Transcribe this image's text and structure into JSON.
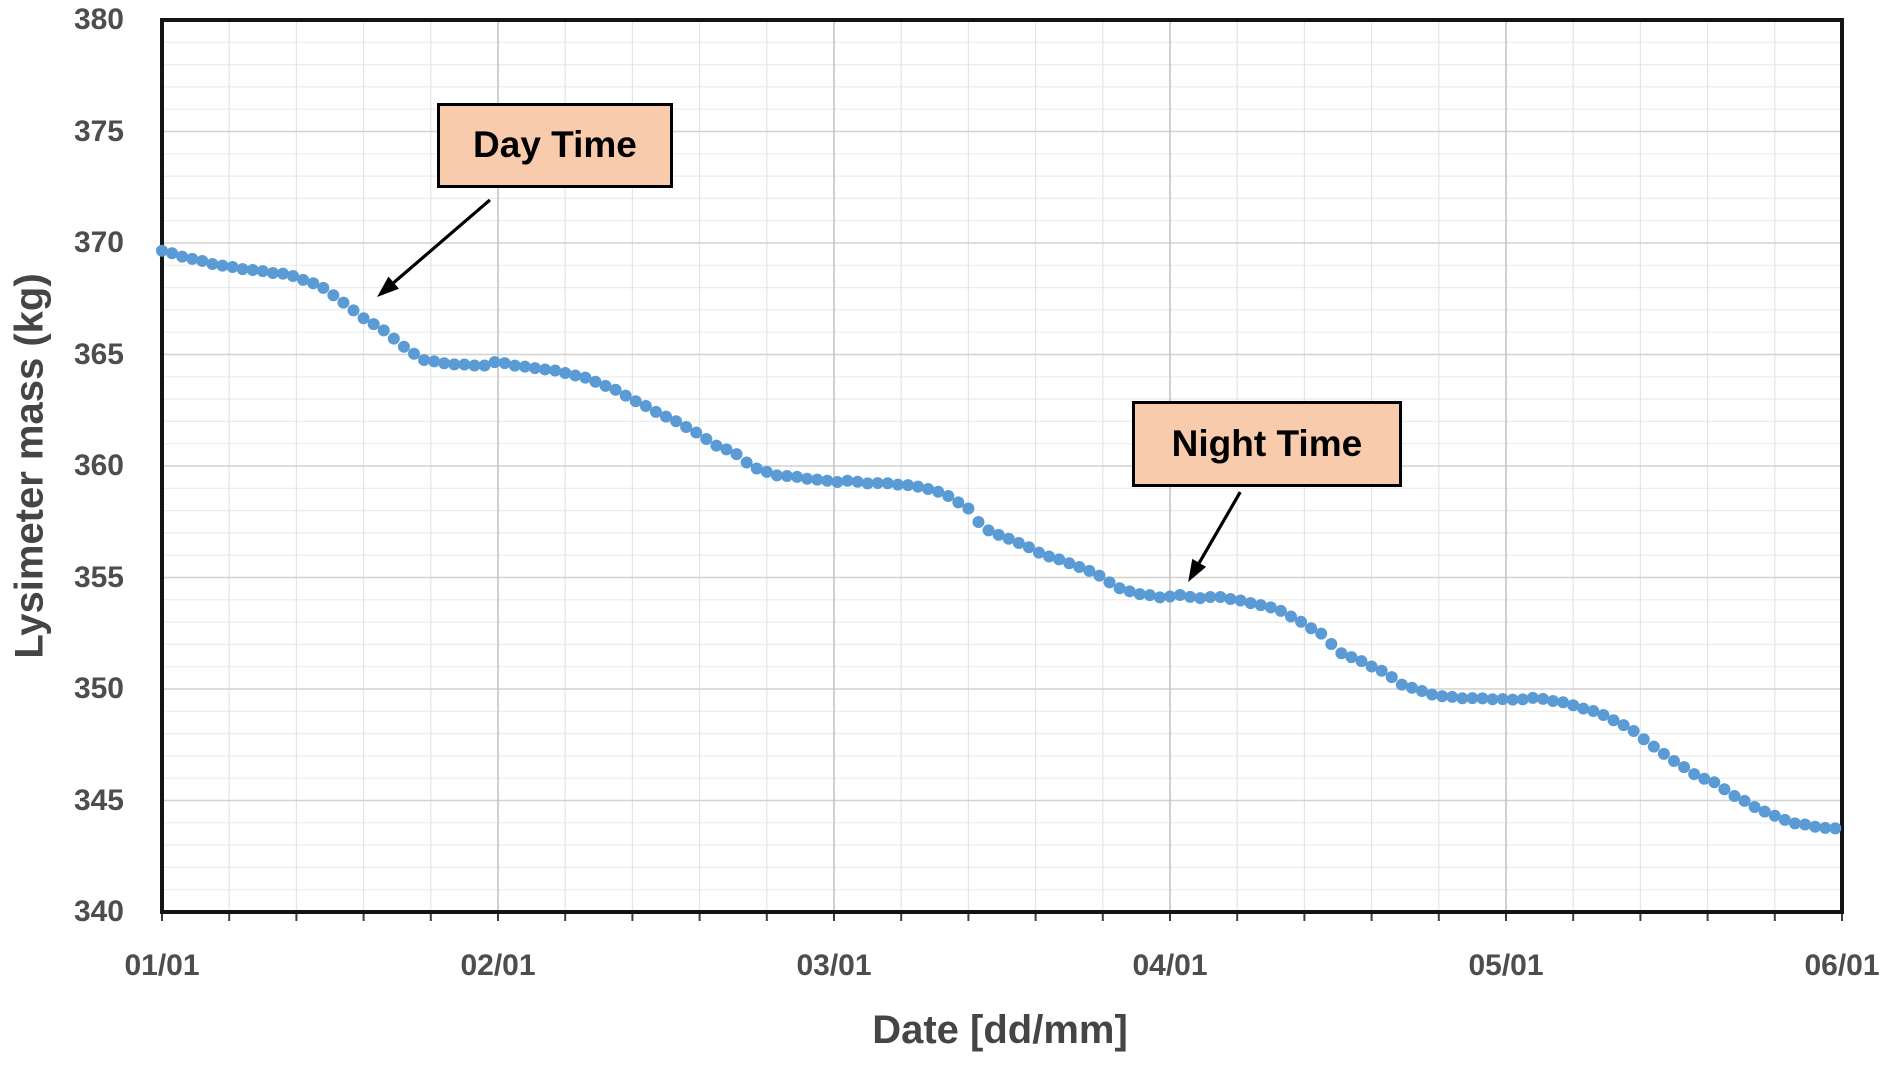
{
  "chart_data": {
    "type": "scatter",
    "title": "",
    "xlabel": "Date [dd/mm]",
    "ylabel": "Lysimeter mass (kg)",
    "xlim_days": [
      0,
      5
    ],
    "ylim": [
      340,
      380
    ],
    "x_tick_days": [
      0,
      1,
      2,
      3,
      4,
      5
    ],
    "x_tick_labels": [
      "01/01",
      "02/01",
      "03/01",
      "04/01",
      "05/01",
      "06/01"
    ],
    "y_ticks": [
      340,
      345,
      350,
      355,
      360,
      365,
      370,
      375,
      380
    ],
    "x_minor_step_days": 0.2,
    "y_minor_step_kg": 1,
    "grid": "major and minor, both axes",
    "legend": "none",
    "style": {
      "marker_color": "#5B9BD5",
      "marker_radius_px": 6,
      "plot_border_color": "#141414",
      "grid_minor_h": "#ececec",
      "grid_major_h": "#d2d2d2",
      "grid_minor_v": "#e4e4e4",
      "grid_major_v": "#c4c4c4",
      "tick_mark_color": "#3d3d3d",
      "label_color": "#4d4d4d",
      "annotation_fill": "#F8CBAD",
      "annotation_border": "#000000",
      "arrow_color": "#000000",
      "background": "#ffffff"
    },
    "series": [
      {
        "name": "Lysimeter mass",
        "sample_step_days": 0.03,
        "noise_kg": 0.035,
        "anchors": {
          "x_days": [
            0,
            0.08,
            0.17,
            0.27,
            0.37,
            0.43,
            0.49,
            0.55,
            0.61,
            0.67,
            0.73,
            0.78,
            0.83,
            0.89,
            0.95,
            1.0,
            1.07,
            1.13,
            1.19,
            1.25,
            1.3,
            1.36,
            1.4,
            1.46,
            1.52,
            1.58,
            1.64,
            1.7,
            1.76,
            1.82,
            1.88,
            1.94,
            2.0,
            2.04,
            2.1,
            2.17,
            2.23,
            2.29,
            2.35,
            2.4,
            2.44,
            2.49,
            2.55,
            2.61,
            2.67,
            2.73,
            2.79,
            2.85,
            2.91,
            2.97,
            3.03,
            3.09,
            3.15,
            3.21,
            3.27,
            3.33,
            3.39,
            3.45,
            3.5,
            3.56,
            3.63,
            3.69,
            3.75,
            3.8,
            3.88,
            3.95,
            4.02,
            4.09,
            4.16,
            4.22,
            4.28,
            4.32,
            4.38,
            4.44,
            4.5,
            4.56,
            4.62,
            4.68,
            4.74,
            4.8,
            4.86,
            4.92,
            4.97,
            5.0
          ],
          "mass_kg": [
            369.65,
            369.3,
            369.0,
            368.8,
            368.6,
            368.3,
            367.9,
            367.2,
            366.55,
            366.0,
            365.2,
            364.75,
            364.6,
            364.55,
            364.5,
            364.7,
            364.45,
            364.35,
            364.2,
            364.0,
            363.75,
            363.35,
            363.0,
            362.5,
            362.05,
            361.6,
            361.0,
            360.65,
            359.95,
            359.6,
            359.5,
            359.4,
            359.3,
            359.35,
            359.25,
            359.2,
            359.1,
            358.95,
            358.6,
            358.1,
            357.3,
            356.9,
            356.55,
            356.1,
            355.8,
            355.5,
            355.1,
            354.5,
            354.25,
            354.1,
            354.2,
            354.1,
            354.15,
            353.95,
            353.75,
            353.5,
            353.0,
            352.5,
            351.7,
            351.3,
            350.8,
            350.2,
            349.9,
            349.7,
            349.6,
            349.55,
            349.5,
            349.6,
            349.45,
            349.2,
            348.9,
            348.6,
            348.1,
            347.4,
            346.8,
            346.2,
            345.8,
            345.2,
            344.7,
            344.3,
            344.0,
            343.85,
            343.75,
            343.7
          ]
        }
      }
    ],
    "annotations": [
      {
        "label": "Day Time",
        "box": {
          "x0_days": 0.818,
          "x1_days": 1.521,
          "top_kg": 376.28,
          "bottom_kg": 372.47
        },
        "arrow": {
          "from": {
            "x_days": 0.976,
            "y_kg": 371.93
          },
          "to": {
            "x_days": 0.64,
            "y_kg": 367.58
          }
        }
      },
      {
        "label": "Night Time",
        "box": {
          "x0_days": 2.887,
          "x1_days": 3.69,
          "top_kg": 362.9,
          "bottom_kg": 359.06
        },
        "arrow": {
          "from": {
            "x_days": 3.209,
            "y_kg": 358.83
          },
          "to": {
            "x_days": 3.054,
            "y_kg": 354.8
          }
        }
      }
    ]
  }
}
